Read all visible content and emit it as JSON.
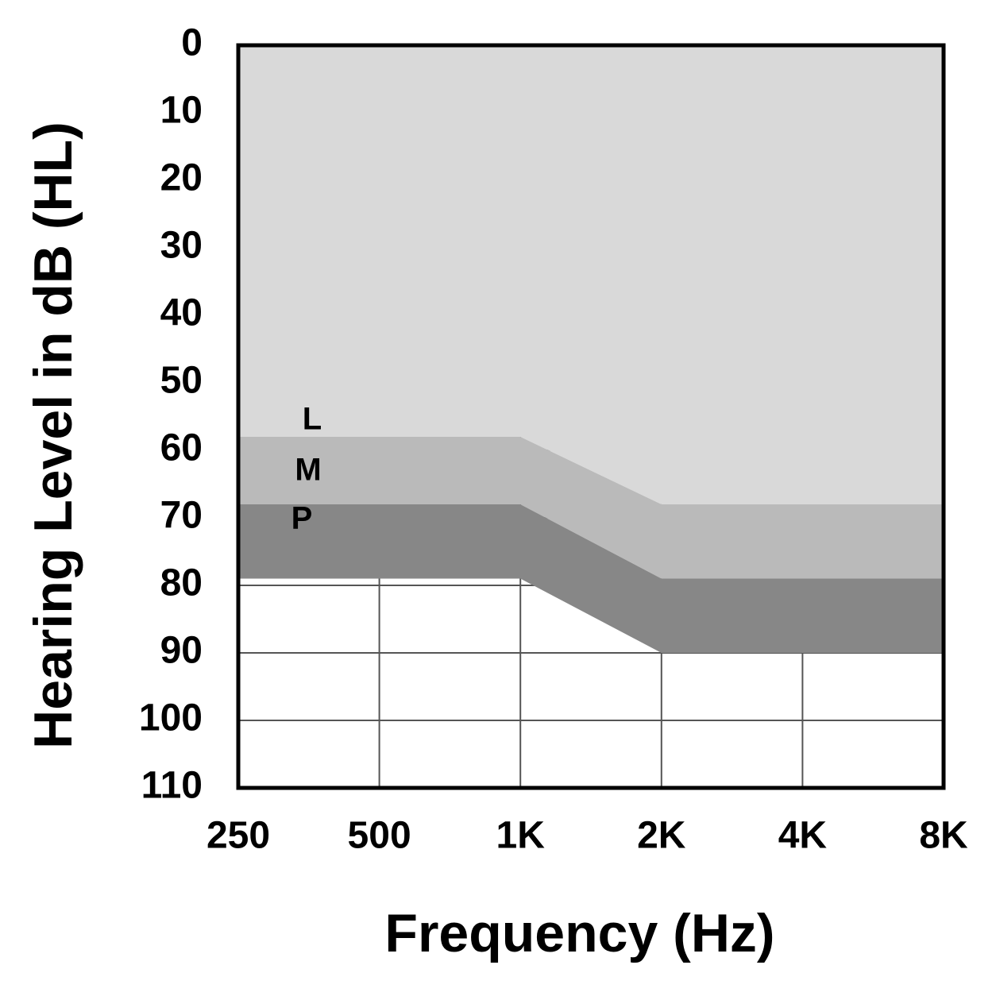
{
  "chart_data": {
    "type": "band",
    "x_label": "Frequency (Hz)",
    "y_label": "Hearing Level in dB (HL)",
    "x": [
      250,
      500,
      1000,
      2000,
      4000,
      8000
    ],
    "xscale": "log",
    "xlim": [
      250,
      8000
    ],
    "xticks": [
      250,
      500,
      {
        "value": 1000,
        "label": "1K"
      },
      {
        "value": 2000,
        "label": "2K"
      },
      {
        "value": 4000,
        "label": "4K"
      },
      {
        "value": 8000,
        "label": "8K"
      }
    ],
    "ylim": [
      0,
      110
    ],
    "y_inverted": true,
    "yticks": [
      0,
      10,
      20,
      30,
      40,
      50,
      60,
      70,
      80,
      90,
      100,
      110
    ],
    "grid": true,
    "series": [
      {
        "name": "L",
        "color": "#d9d9d9",
        "values": [
          58,
          58,
          58,
          68,
          68,
          68
        ]
      },
      {
        "name": "M",
        "color": "#bababa",
        "values": [
          68,
          68,
          68,
          79,
          79,
          79
        ]
      },
      {
        "name": "P",
        "color": "#878787",
        "values": [
          79,
          79,
          79,
          90,
          90,
          90
        ]
      }
    ]
  }
}
